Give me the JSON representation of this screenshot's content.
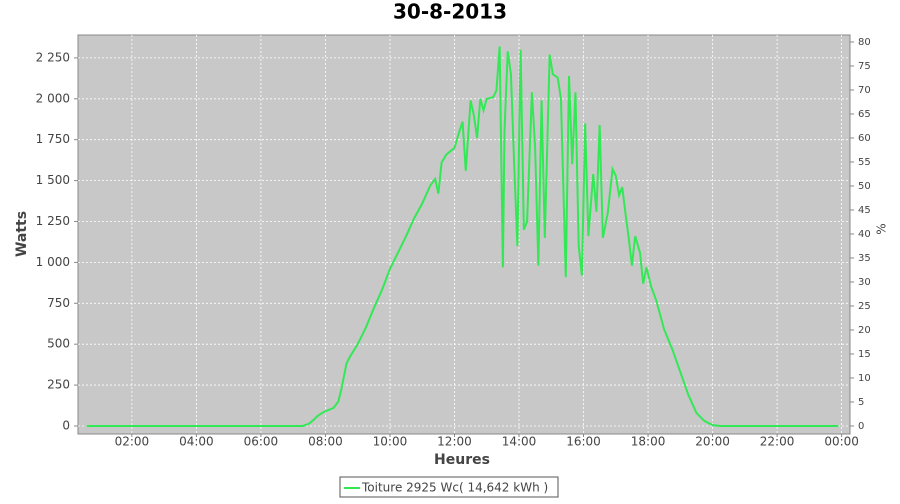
{
  "chart_data": {
    "type": "line",
    "title": "30-8-2013",
    "x_label": "Heures",
    "y_label": "Watts",
    "y2_label": "%",
    "x": [
      0.6,
      3,
      6,
      7.3,
      7.5,
      7.65,
      7.75,
      7.9,
      8.0,
      8.25,
      8.4,
      8.5,
      8.65,
      8.75,
      9.0,
      9.25,
      9.5,
      9.75,
      10.0,
      10.25,
      10.5,
      10.75,
      11.0,
      11.25,
      11.4,
      11.5,
      11.6,
      11.75,
      12.0,
      12.15,
      12.25,
      12.35,
      12.5,
      12.6,
      12.7,
      12.8,
      12.9,
      13.0,
      13.2,
      13.3,
      13.4,
      13.5,
      13.55,
      13.65,
      13.75,
      13.85,
      13.95,
      14.05,
      14.15,
      14.25,
      14.4,
      14.5,
      14.6,
      14.7,
      14.8,
      14.95,
      15.05,
      15.2,
      15.3,
      15.45,
      15.55,
      15.65,
      15.75,
      15.85,
      15.95,
      16.05,
      16.15,
      16.3,
      16.4,
      16.5,
      16.6,
      16.75,
      16.9,
      17.0,
      17.1,
      17.2,
      17.3,
      17.4,
      17.5,
      17.6,
      17.75,
      17.85,
      17.95,
      18.1,
      18.25,
      18.5,
      18.75,
      19.0,
      19.25,
      19.5,
      19.75,
      20.0,
      20.25,
      21,
      23.9
    ],
    "series": [
      {
        "name": "Toiture 2925 Wc( 14,642 kWh )",
        "color": "#33e855",
        "values": [
          0,
          0,
          0,
          0,
          15,
          40,
          60,
          80,
          90,
          110,
          150,
          230,
          380,
          420,
          500,
          600,
          720,
          830,
          960,
          1060,
          1160,
          1270,
          1360,
          1470,
          1510,
          1420,
          1610,
          1660,
          1700,
          1800,
          1860,
          1560,
          1990,
          1900,
          1760,
          2000,
          1930,
          2000,
          2010,
          2050,
          2320,
          970,
          1800,
          2290,
          2150,
          1600,
          1100,
          2300,
          1200,
          1250,
          2040,
          1700,
          980,
          1990,
          1150,
          2270,
          2150,
          2130,
          2000,
          910,
          2140,
          1600,
          2040,
          1100,
          920,
          1850,
          1160,
          1540,
          1310,
          1840,
          1150,
          1300,
          1570,
          1530,
          1410,
          1460,
          1300,
          1150,
          980,
          1160,
          1060,
          870,
          970,
          850,
          770,
          590,
          470,
          330,
          190,
          80,
          30,
          5,
          0,
          0,
          0
        ]
      }
    ],
    "xlim": [
      0.33,
      24.26
    ],
    "xticks": [
      {
        "value": 2,
        "label": "02:00"
      },
      {
        "value": 4,
        "label": "04:00"
      },
      {
        "value": 6,
        "label": "06:00"
      },
      {
        "value": 8,
        "label": "08:00"
      },
      {
        "value": 10,
        "label": "10:00"
      },
      {
        "value": 12,
        "label": "12:00"
      },
      {
        "value": 14,
        "label": "14:00"
      },
      {
        "value": 16,
        "label": "16:00"
      },
      {
        "value": 18,
        "label": "18:00"
      },
      {
        "value": 20,
        "label": "20:00"
      },
      {
        "value": 22,
        "label": "22:00"
      },
      {
        "value": 24,
        "label": "00:00"
      }
    ],
    "ylim": [
      -49,
      2390
    ],
    "yticks": [
      0,
      250,
      500,
      750,
      {
        "value": 1000,
        "label": "1 000"
      },
      {
        "value": 1250,
        "label": "1 250"
      },
      {
        "value": 1500,
        "label": "1 500"
      },
      {
        "value": 1750,
        "label": "1 750"
      },
      {
        "value": 2000,
        "label": "2 000"
      },
      {
        "value": 2250,
        "label": "2 250"
      }
    ],
    "y2lim": [
      -1.67,
      81.46
    ],
    "y2ticks": [
      0,
      5,
      10,
      15,
      20,
      25,
      30,
      35,
      40,
      45,
      50,
      55,
      60,
      65,
      70,
      75,
      80
    ],
    "grid": true
  }
}
